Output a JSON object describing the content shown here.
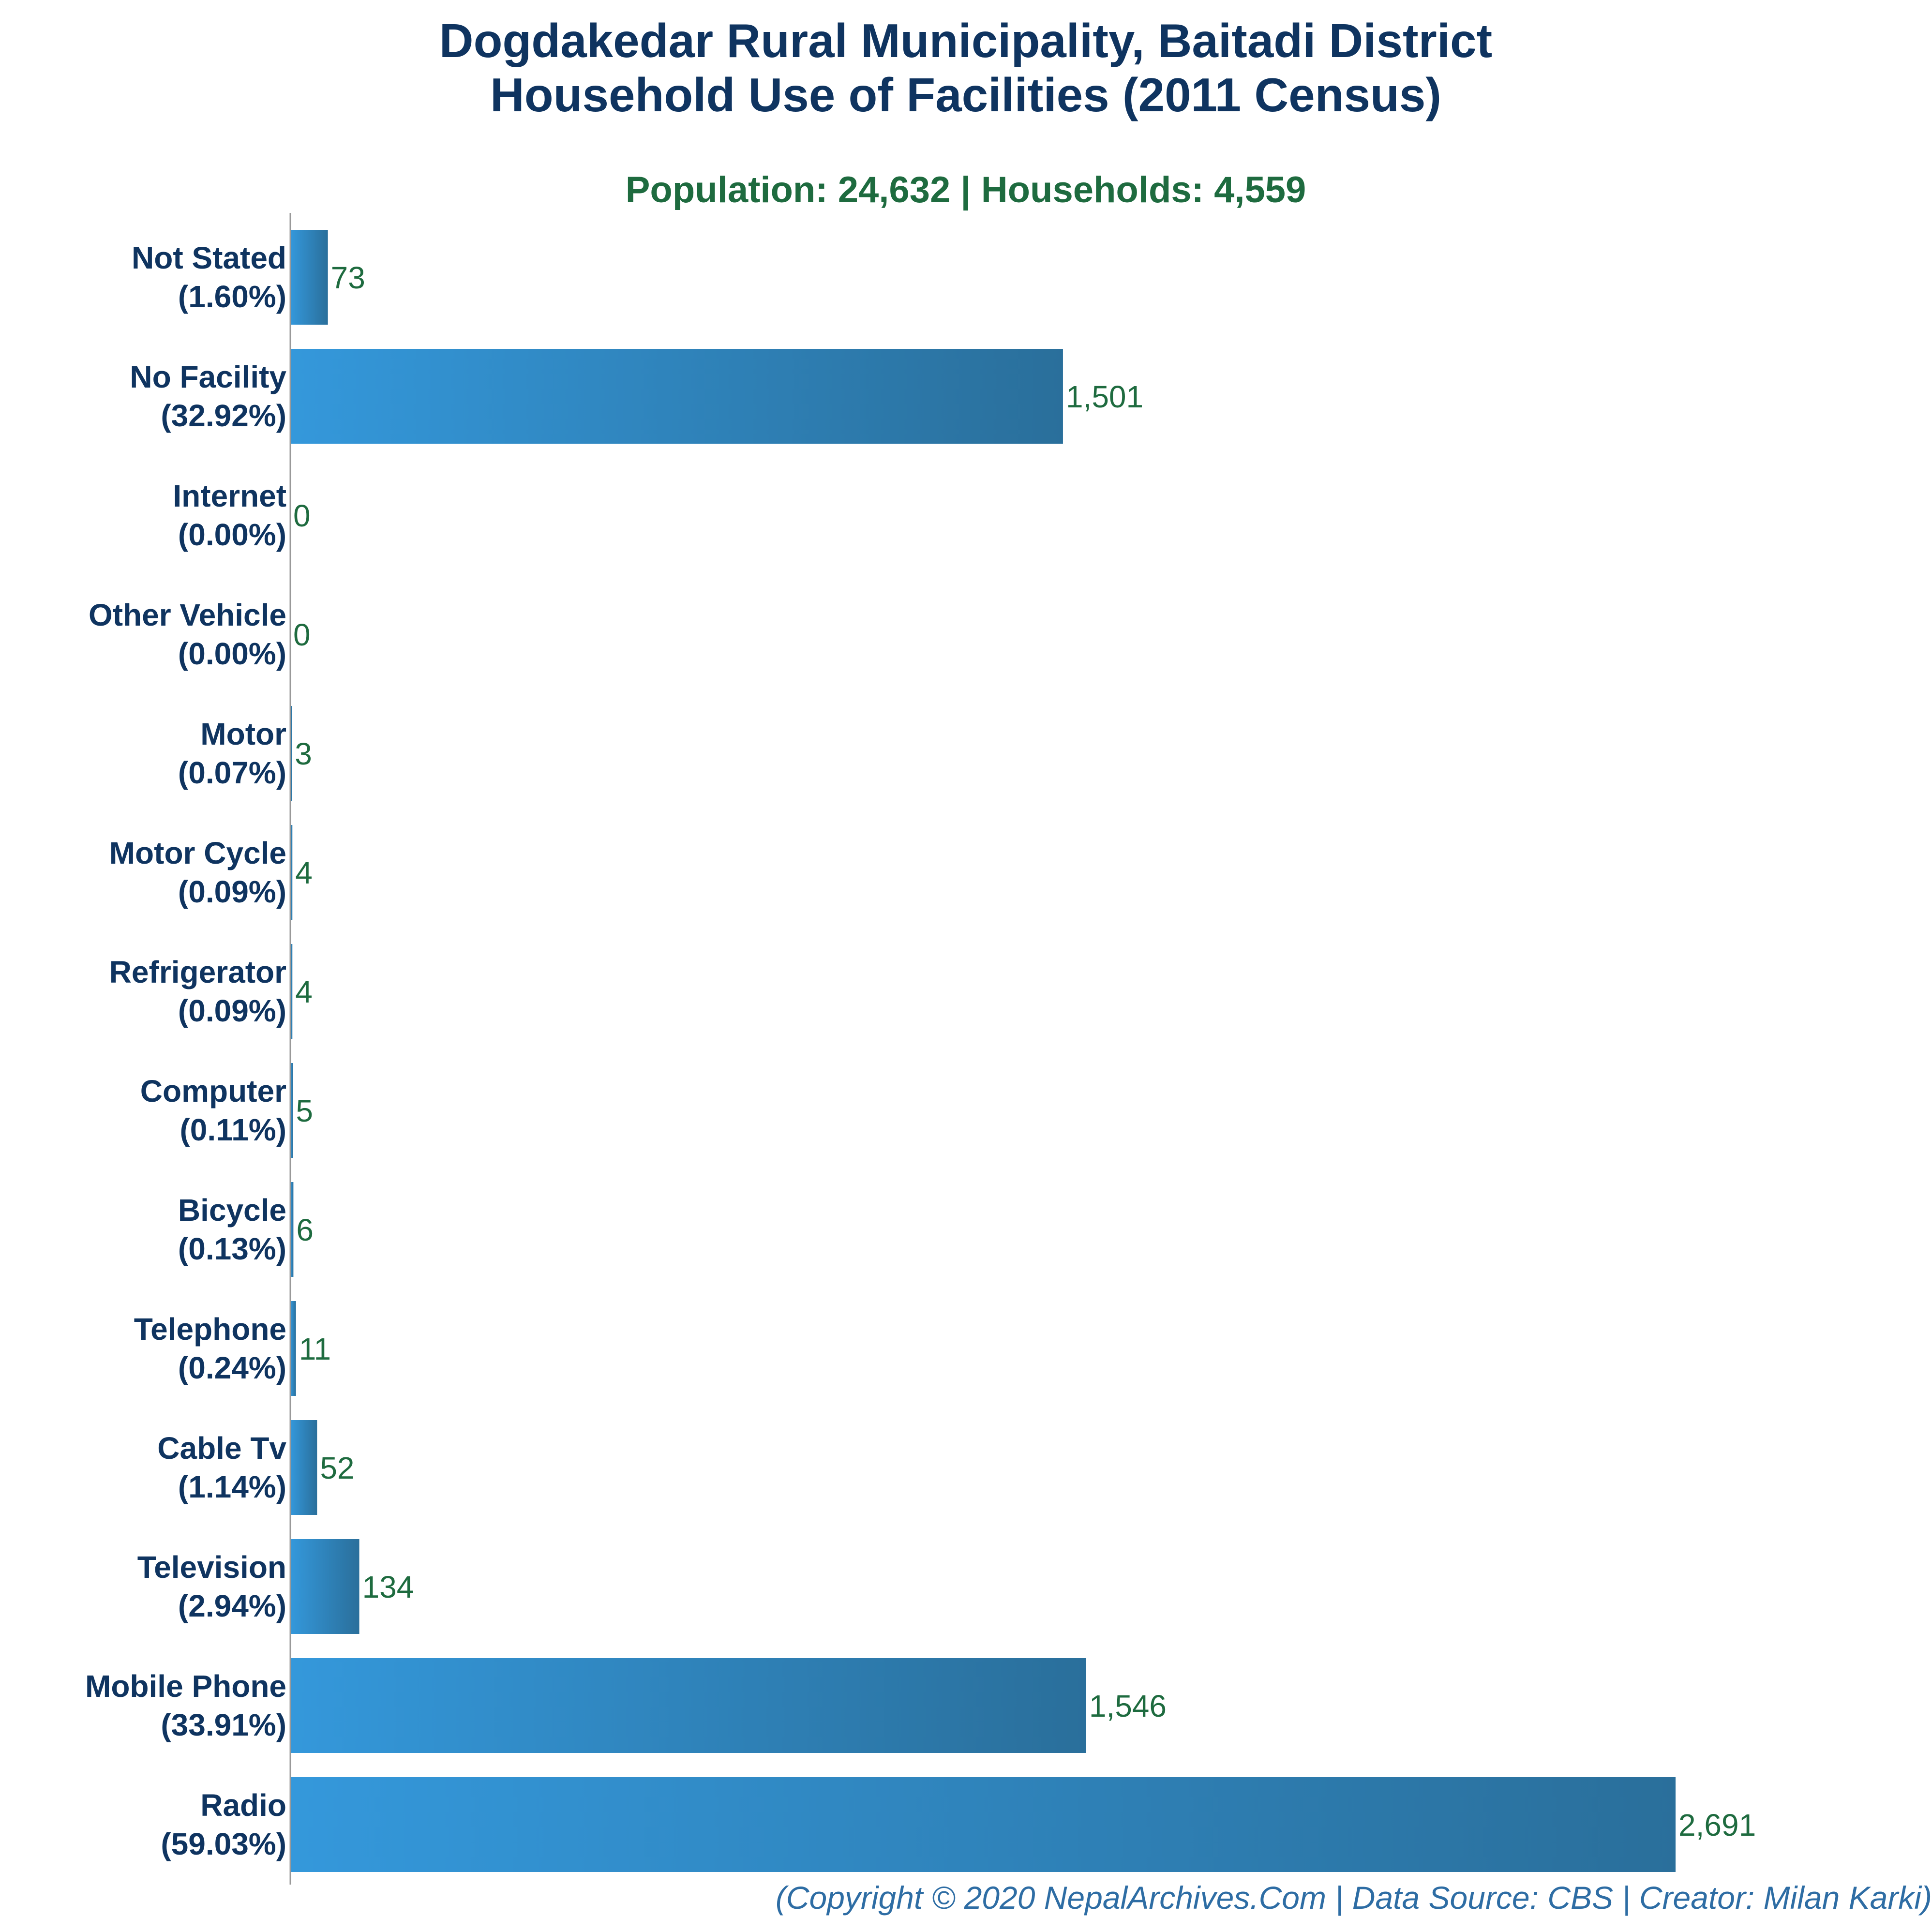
{
  "chart_data": {
    "type": "bar",
    "orientation": "horizontal",
    "title_lines": [
      "Dogdakedar Rural Municipality, Baitadi District",
      "Household Use of Facilities (2011 Census)"
    ],
    "subtitle": "Population: 24,632 | Households: 4,559",
    "categories": [
      "Not Stated",
      "No Facility",
      "Internet",
      "Other Vehicle",
      "Motor",
      "Motor Cycle",
      "Refrigerator",
      "Computer",
      "Bicycle",
      "Telephone",
      "Cable Tv",
      "Television",
      "Mobile Phone",
      "Radio"
    ],
    "percent_labels": [
      "(1.60%)",
      "(32.92%)",
      "(0.00%)",
      "(0.00%)",
      "(0.07%)",
      "(0.09%)",
      "(0.09%)",
      "(0.11%)",
      "(0.13%)",
      "(0.24%)",
      "(1.14%)",
      "(2.94%)",
      "(33.91%)",
      "(59.03%)"
    ],
    "values": [
      73,
      1501,
      0,
      0,
      3,
      4,
      4,
      5,
      6,
      11,
      52,
      134,
      1546,
      2691
    ],
    "value_labels": [
      "73",
      "1,501",
      "0",
      "0",
      "3",
      "4",
      "4",
      "5",
      "6",
      "11",
      "52",
      "134",
      "1,546",
      "2,691"
    ],
    "xlim": [
      0,
      2800
    ],
    "grid": false,
    "legend": "none",
    "colors": {
      "bar_start": "#3498db",
      "bar_end": "#2a6f9b",
      "title": "#0f3460",
      "subtitle": "#1e6b3f",
      "value_label": "#1e6b3f",
      "footer": "#2e6da4",
      "axis": "#999999"
    }
  },
  "footer": "(Copyright © 2020 NepalArchives.Com | Data Source: CBS | Creator: Milan Karki)"
}
